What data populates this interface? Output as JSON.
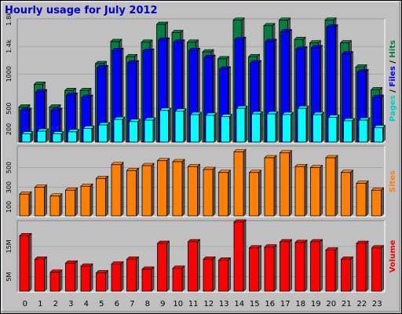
{
  "chart_data": {
    "title": "Hourly usage for July 2012",
    "hours": [
      "0",
      "1",
      "2",
      "3",
      "4",
      "5",
      "6",
      "7",
      "8",
      "9",
      "10",
      "11",
      "12",
      "13",
      "14",
      "15",
      "16",
      "17",
      "18",
      "19",
      "20",
      "21",
      "22",
      "23"
    ],
    "colors": {
      "background": "#c0c0c0",
      "pages": "#00ffff",
      "files": "#0000ff",
      "hits": "#008040",
      "sites": "#ff8000",
      "volume": "#ff0000",
      "title": "#0000cc"
    },
    "panels": [
      {
        "type": "bar",
        "name": "hits-files-pages",
        "side_label_parts": [
          {
            "text": "Pages",
            "color": "#00cccc"
          },
          {
            "text": " / ",
            "color": "#000000"
          },
          {
            "text": "Files",
            "color": "#0000ff"
          },
          {
            "text": " / ",
            "color": "#000000"
          },
          {
            "text": "Hits",
            "color": "#008040"
          }
        ],
        "y_ticks": [
          "200",
          "500",
          "1000",
          "1.4k",
          "1.8k"
        ],
        "y_tick_values": [
          200,
          500,
          1000,
          1400,
          1800
        ],
        "ylim": [
          0,
          1800
        ],
        "series": [
          {
            "key": "hits",
            "values": [
              520,
              850,
              520,
              760,
              760,
              1150,
              1470,
              1250,
              1460,
              1720,
              1600,
              1460,
              1320,
              1220,
              1780,
              1250,
              1700,
              1780,
              1500,
              1450,
              1780,
              1450,
              1100,
              770
            ]
          },
          {
            "key": "files",
            "values": [
              470,
              740,
              470,
              690,
              660,
              1090,
              1340,
              1160,
              1330,
              1490,
              1460,
              1340,
              1240,
              1070,
              1500,
              1160,
              1470,
              1610,
              1360,
              1380,
              1680,
              1290,
              1030,
              660
            ]
          },
          {
            "key": "pages",
            "values": [
              130,
              170,
              130,
              160,
              210,
              260,
              340,
              310,
              330,
              470,
              460,
              410,
              400,
              380,
              500,
              420,
              420,
              410,
              500,
              410,
              370,
              320,
              330,
              220
            ]
          }
        ]
      },
      {
        "type": "bar",
        "name": "sites",
        "side_label_parts": [
          {
            "text": "Sites",
            "color": "#ff8000"
          }
        ],
        "y_ticks": [
          "100",
          "300",
          "500"
        ],
        "y_tick_values": [
          100,
          300,
          500
        ],
        "ylim": [
          0,
          720
        ],
        "series": [
          {
            "key": "sites",
            "values": [
              230,
              300,
              210,
              270,
              310,
              390,
              530,
              470,
              520,
              570,
              560,
              510,
              480,
              450,
              660,
              450,
              600,
              650,
              510,
              500,
              600,
              450,
              340,
              270
            ]
          }
        ]
      },
      {
        "type": "bar",
        "name": "volume",
        "side_label_parts": [
          {
            "text": "Volume",
            "color": "#ff0000"
          }
        ],
        "y_ticks": [
          "5M",
          "15M"
        ],
        "y_tick_values": [
          5,
          15
        ],
        "ylim": [
          0,
          23.5
        ],
        "series": [
          {
            "key": "volume",
            "values": [
              18.5,
              10.8,
              6.5,
              9.5,
              8.5,
              6.3,
              9.2,
              10.8,
              7.5,
              16.0,
              7.8,
              16.5,
              10.8,
              10.5,
              23.0,
              14.5,
              14.8,
              16.5,
              16.3,
              16.5,
              13.8,
              10.8,
              16.0,
              14.5
            ]
          }
        ]
      }
    ]
  }
}
